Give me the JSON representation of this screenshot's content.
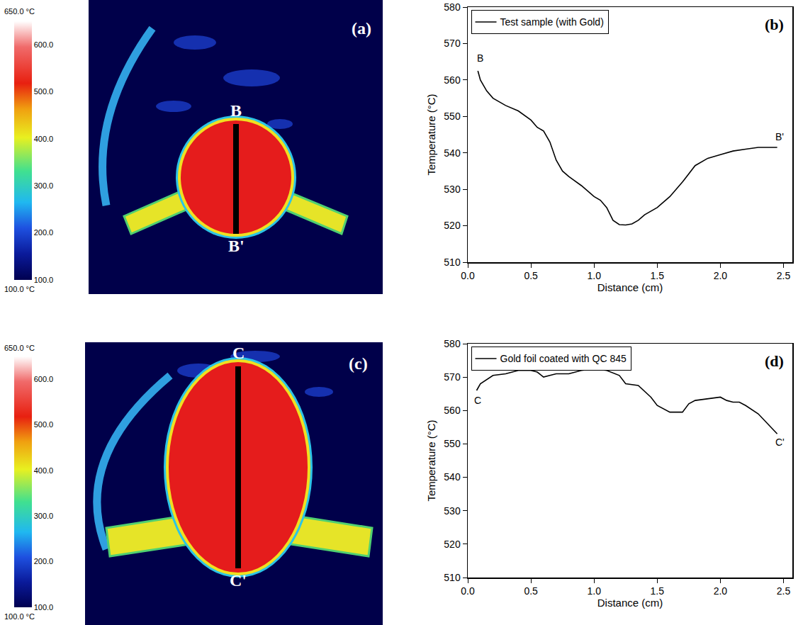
{
  "chart_data": [
    {
      "type": "thermal_image",
      "panel": "(a)",
      "line_labels": [
        "B",
        "B'"
      ],
      "colorbar": {
        "range": [
          100,
          650
        ],
        "ticks": [
          {
            "value": 100,
            "label": "100.0"
          },
          {
            "value": 200,
            "label": "200.0"
          },
          {
            "value": 300,
            "label": "300.0"
          },
          {
            "value": 400,
            "label": "400.0"
          },
          {
            "value": 500,
            "label": "500.0"
          },
          {
            "value": 600,
            "label": "600.0"
          }
        ],
        "max_label": "650.0 °C",
        "min_label": "100.0 °C"
      }
    },
    {
      "type": "line",
      "panel": "(b)",
      "xlabel": "Distance (cm)",
      "ylabel": "Temperature (°C)",
      "xlim": [
        0,
        2.57
      ],
      "ylim": [
        510,
        580
      ],
      "xticks": [
        {
          "value": 0,
          "label": "0.0"
        },
        0.5,
        {
          "value": 1,
          "label": "1.0"
        },
        1.5,
        {
          "value": 2,
          "label": "2.0"
        },
        2.5
      ],
      "yticks": [
        510,
        520,
        530,
        540,
        550,
        560,
        570,
        580
      ],
      "grid": false,
      "legend": "upper left",
      "series": [
        {
          "name": "Test sample (with Gold)",
          "color": "#000000",
          "x": [
            0.08,
            0.1,
            0.15,
            0.2,
            0.3,
            0.4,
            0.5,
            0.55,
            0.6,
            0.65,
            0.7,
            0.75,
            0.8,
            0.9,
            1.0,
            1.05,
            1.1,
            1.15,
            1.2,
            1.25,
            1.3,
            1.35,
            1.4,
            1.45,
            1.5,
            1.6,
            1.7,
            1.8,
            1.9,
            2.0,
            2.1,
            2.2,
            2.3,
            2.45
          ],
          "values": [
            562.5,
            560,
            557,
            555,
            553,
            551.5,
            549,
            547,
            546,
            543,
            538,
            535,
            533.5,
            531,
            528,
            527,
            525,
            521.5,
            520.3,
            520.2,
            520.5,
            521.5,
            523,
            524,
            525,
            528,
            532,
            536.5,
            538.5,
            539.5,
            540.5,
            541,
            541.5,
            541.5
          ]
        }
      ],
      "annotations": [
        {
          "text": "B",
          "x": 0.1,
          "y": 566
        },
        {
          "text": "B'",
          "x": 2.47,
          "y": 544.5
        }
      ]
    },
    {
      "type": "thermal_image",
      "panel": "(c)",
      "line_labels": [
        "C",
        "C'"
      ],
      "colorbar": {
        "range": [
          100,
          650
        ],
        "ticks": [
          {
            "value": 100,
            "label": "100.0"
          },
          {
            "value": 200,
            "label": "200.0"
          },
          {
            "value": 300,
            "label": "300.0"
          },
          {
            "value": 400,
            "label": "400.0"
          },
          {
            "value": 500,
            "label": "500.0"
          },
          {
            "value": 600,
            "label": "600.0"
          }
        ],
        "max_label": "650.0 °C",
        "min_label": "100.0 °C"
      }
    },
    {
      "type": "line",
      "panel": "(d)",
      "xlabel": "Distance (cm)",
      "ylabel": "Temperature (°C)",
      "xlim": [
        0,
        2.57
      ],
      "ylim": [
        510,
        580
      ],
      "xticks": [
        {
          "value": 0,
          "label": "0.0"
        },
        0.5,
        {
          "value": 1,
          "label": "1.0"
        },
        1.5,
        {
          "value": 2,
          "label": "2.0"
        },
        2.5
      ],
      "yticks": [
        510,
        520,
        530,
        540,
        550,
        560,
        570,
        580
      ],
      "grid": false,
      "legend": "upper left",
      "series": [
        {
          "name": "Gold foil coated with QC 845",
          "color": "#000000",
          "x": [
            0.07,
            0.1,
            0.2,
            0.3,
            0.4,
            0.5,
            0.55,
            0.6,
            0.65,
            0.7,
            0.8,
            0.9,
            1.0,
            1.1,
            1.2,
            1.25,
            1.35,
            1.45,
            1.5,
            1.6,
            1.7,
            1.75,
            1.8,
            1.9,
            2.0,
            2.05,
            2.1,
            2.15,
            2.2,
            2.3,
            2.4,
            2.45
          ],
          "values": [
            566,
            568,
            570.5,
            571,
            572,
            572,
            571.5,
            570,
            570.5,
            571,
            571,
            572,
            572.5,
            572,
            570.5,
            568,
            567.5,
            564,
            561.5,
            559.5,
            559.5,
            562,
            563,
            563.5,
            564,
            563,
            562.5,
            562.5,
            561.5,
            559,
            555,
            553
          ]
        }
      ],
      "annotations": [
        {
          "text": "C",
          "x": 0.08,
          "y": 563
        },
        {
          "text": "C'",
          "x": 2.47,
          "y": 550.5
        }
      ]
    }
  ]
}
